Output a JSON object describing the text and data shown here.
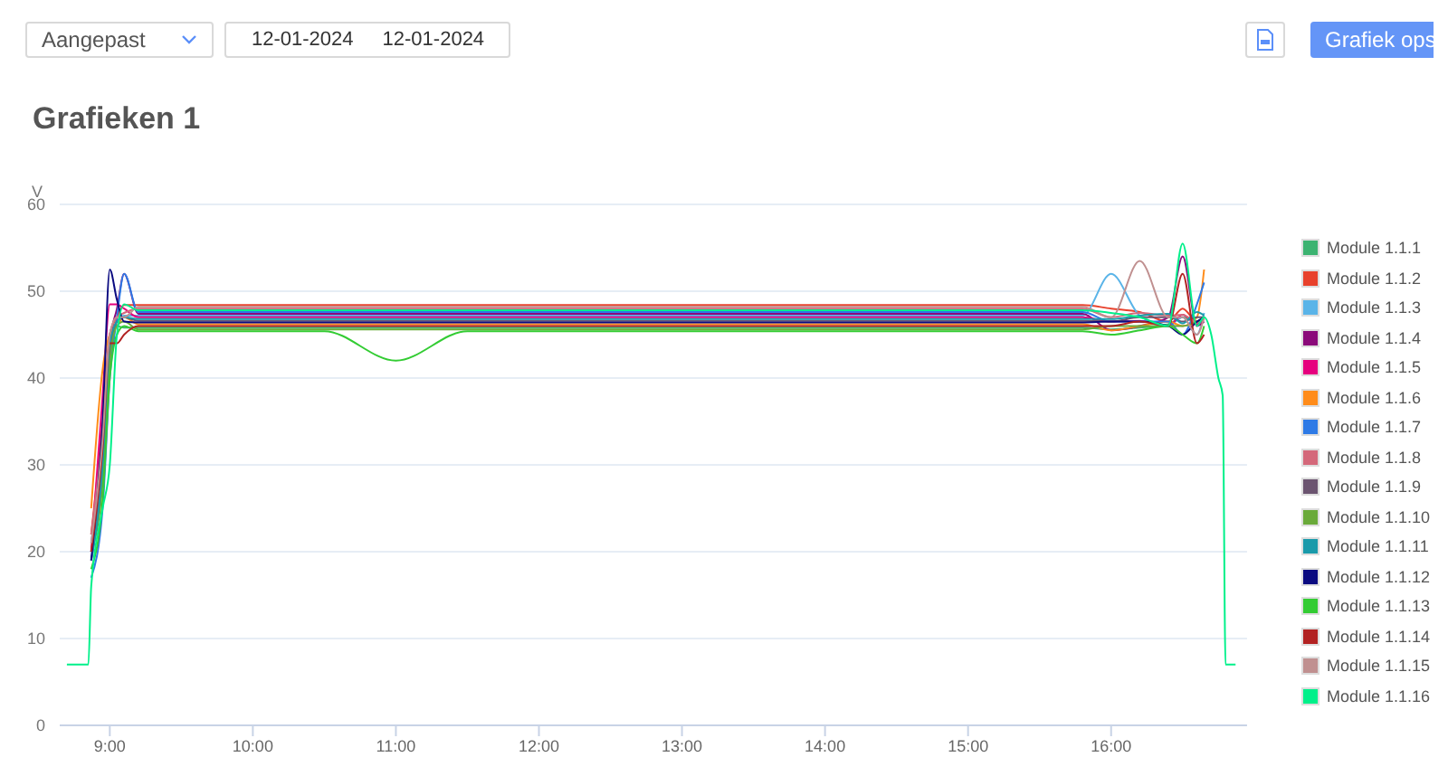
{
  "chart_data": {
    "type": "line",
    "title": "Grafieken 1",
    "ylabel": "V",
    "annotations": [
      "Aangepast",
      "12-01-2024",
      "12-01-2024",
      "Grafiek ops"
    ],
    "x": [
      8.87,
      8.95,
      9.0,
      9.05,
      9.1,
      9.2,
      9.5,
      10,
      10.5,
      11,
      11.5,
      12,
      12.5,
      13,
      13.5,
      14,
      14.5,
      15,
      15.5,
      15.8,
      16,
      16.2,
      16.4,
      16.5,
      16.6,
      16.65
    ],
    "xlim": [
      8.65,
      16.95
    ],
    "xticks": [
      {
        "value": 9,
        "label": "9:00"
      },
      {
        "value": 10,
        "label": "10:00"
      },
      {
        "value": 11,
        "label": "11:00"
      },
      {
        "value": 12,
        "label": "12:00"
      },
      {
        "value": 13,
        "label": "13:00"
      },
      {
        "value": 14,
        "label": "14:00"
      },
      {
        "value": 15,
        "label": "15:00"
      },
      {
        "value": 16,
        "label": "16:00"
      }
    ],
    "ylim": [
      0,
      60
    ],
    "yticks": [
      0,
      10,
      20,
      30,
      40,
      50,
      60
    ],
    "grid": "y",
    "legend": "right",
    "marker": "none",
    "line_style": "solid",
    "series": [
      {
        "name": "Module 1.1.1",
        "color": "#3cb371",
        "values": [
          20,
          30,
          42,
          46,
          45.8,
          45.8,
          45.8,
          45.8,
          45.8,
          45.8,
          45.8,
          45.8,
          45.8,
          45.8,
          45.8,
          45.8,
          45.8,
          45.8,
          45.8,
          45.8,
          45.6,
          45.8,
          46.2,
          47,
          46.5,
          47
        ]
      },
      {
        "name": "Module 1.1.2",
        "color": "#e8412c",
        "values": [
          22,
          35,
          45,
          47,
          48.4,
          48.4,
          48.4,
          48.4,
          48.4,
          48.4,
          48.4,
          48.4,
          48.4,
          48.4,
          48.4,
          48.4,
          48.4,
          48.4,
          48.4,
          48.4,
          48,
          47.6,
          46.5,
          48,
          46.5,
          47
        ]
      },
      {
        "name": "Module 1.1.3",
        "color": "#5ab4e8",
        "values": [
          21,
          33,
          44,
          46.5,
          47.2,
          47.2,
          47.2,
          47.2,
          47.2,
          47.2,
          47.2,
          47.2,
          47.2,
          47.2,
          47.2,
          47.2,
          47.2,
          47.2,
          47.2,
          47.2,
          52,
          47.2,
          46,
          47,
          45,
          47.5
        ]
      },
      {
        "name": "Module 1.1.4",
        "color": "#8b0a7a",
        "values": [
          19,
          30,
          44,
          48,
          52,
          47.4,
          47.4,
          47.4,
          47.4,
          47.4,
          47.4,
          47.4,
          47.4,
          47.4,
          47.4,
          47.4,
          47.4,
          47.4,
          47.4,
          47.4,
          45.5,
          46,
          47,
          54,
          46,
          46.5
        ]
      },
      {
        "name": "Module 1.1.5",
        "color": "#e6007e",
        "values": [
          20,
          38,
          48.5,
          48.5,
          48,
          47,
          47,
          47,
          47,
          47,
          47,
          47,
          47,
          47,
          47,
          47,
          47,
          47,
          47,
          47,
          46.5,
          46.6,
          46,
          47.3,
          46.2,
          46.8
        ]
      },
      {
        "name": "Module 1.1.6",
        "color": "#ff8c1a",
        "values": [
          25,
          41,
          45,
          46,
          47,
          46.2,
          46.2,
          46.2,
          46.2,
          46.2,
          46.2,
          46.2,
          46.2,
          46.2,
          46.2,
          46.2,
          46.2,
          46.2,
          46.2,
          46.2,
          45.5,
          46,
          46.5,
          46,
          47,
          52.5
        ]
      },
      {
        "name": "Module 1.1.7",
        "color": "#2e7ae6",
        "values": [
          17,
          25,
          40,
          47,
          52,
          47.6,
          47.6,
          47.6,
          47.6,
          47.6,
          47.6,
          47.6,
          47.6,
          47.6,
          47.6,
          47.6,
          47.6,
          47.6,
          47.6,
          47.6,
          46.5,
          46.5,
          46.5,
          45,
          48.5,
          51
        ]
      },
      {
        "name": "Module 1.1.8",
        "color": "#d4687a",
        "values": [
          22,
          34,
          45,
          47,
          47.5,
          48,
          48,
          48,
          48,
          48,
          48,
          48,
          48,
          48,
          48,
          48,
          48,
          48,
          48,
          48,
          47,
          47.5,
          47.2,
          47.3,
          46.4,
          47.1
        ]
      },
      {
        "name": "Module 1.1.9",
        "color": "#6b5470",
        "values": [
          20,
          30,
          43,
          46.5,
          47,
          46.6,
          46.6,
          46.6,
          46.6,
          46.6,
          46.6,
          46.6,
          46.6,
          46.6,
          46.6,
          46.6,
          46.6,
          46.6,
          46.6,
          46.6,
          46.5,
          47,
          47,
          46.5,
          47,
          47
        ]
      },
      {
        "name": "Module 1.1.10",
        "color": "#6aaa3a",
        "values": [
          20,
          28,
          42,
          46,
          46.5,
          45.6,
          45.6,
          45.6,
          45.6,
          45.6,
          45.6,
          45.6,
          45.6,
          45.6,
          45.6,
          45.6,
          45.6,
          45.6,
          45.6,
          45.6,
          46,
          46,
          46,
          46,
          46.5,
          47
        ]
      },
      {
        "name": "Module 1.1.11",
        "color": "#1a9aaa",
        "values": [
          19,
          30,
          44,
          46.5,
          47,
          46.8,
          46.8,
          46.8,
          46.8,
          46.8,
          46.8,
          46.8,
          46.8,
          46.8,
          46.8,
          46.8,
          46.8,
          46.8,
          46.8,
          46.8,
          46.8,
          47.2,
          47.4,
          46.3,
          47.6,
          47.2
        ]
      },
      {
        "name": "Module 1.1.12",
        "color": "#0a0a80",
        "values": [
          19,
          35,
          52.5,
          49,
          46.5,
          46.4,
          46.4,
          46.4,
          46.4,
          46.4,
          46.4,
          46.4,
          46.4,
          46.4,
          46.4,
          46.4,
          46.4,
          46.4,
          46.4,
          46.4,
          46.5,
          46.5,
          46,
          45,
          46.5,
          47
        ]
      },
      {
        "name": "Module 1.1.13",
        "color": "#33cc33",
        "values": [
          18,
          26,
          40,
          45,
          46,
          45.4,
          45.4,
          45.4,
          45.4,
          42,
          45.4,
          45.4,
          45.4,
          45.4,
          45.4,
          45.4,
          45.4,
          45.4,
          45.4,
          45.4,
          45,
          45.5,
          46,
          45,
          44,
          46
        ]
      },
      {
        "name": "Module 1.1.14",
        "color": "#b22222",
        "values": [
          20,
          32,
          44,
          44,
          45,
          46,
          46,
          46,
          46,
          46,
          46,
          46,
          46,
          46,
          46,
          46,
          46,
          46,
          46,
          46,
          46,
          46.5,
          46,
          52,
          44,
          45
        ]
      },
      {
        "name": "Module 1.1.15",
        "color": "#c09090",
        "values": [
          21,
          33,
          45,
          47,
          47,
          48.2,
          48.2,
          48.2,
          48.2,
          48.2,
          48.2,
          48.2,
          48.2,
          48.2,
          48.2,
          48.2,
          48.2,
          48.2,
          48.2,
          48.2,
          47,
          53.5,
          47,
          47,
          45,
          47
        ]
      },
      {
        "name": "Module 1.1.16",
        "color": "#00f08a",
        "x": [
          8.7,
          8.85,
          8.87,
          8.95,
          9.0,
          9.05,
          9.1,
          9.2,
          9.5,
          10,
          10.5,
          11,
          11.5,
          12,
          12.5,
          13,
          13.5,
          14,
          14.5,
          15,
          15.5,
          15.8,
          16,
          16.2,
          16.4,
          16.5,
          16.6,
          16.65,
          16.7,
          16.75,
          16.78,
          16.8,
          16.87
        ],
        "values": [
          7,
          7,
          16,
          25,
          30,
          45,
          48.5,
          47.8,
          47.8,
          47.8,
          47.8,
          47.8,
          47.8,
          47.8,
          47.8,
          47.8,
          47.8,
          47.8,
          47.8,
          47.8,
          47.8,
          47.8,
          47.5,
          47,
          46,
          55.5,
          46,
          47,
          45,
          40,
          38,
          7,
          7
        ]
      }
    ]
  }
}
